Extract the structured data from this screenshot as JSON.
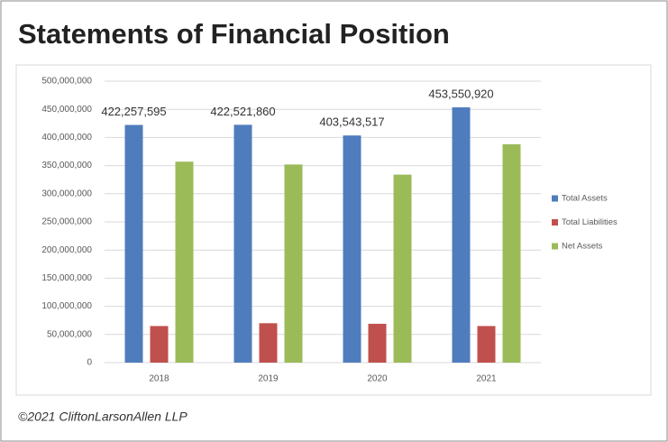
{
  "chart_data": {
    "type": "bar",
    "title": "Statements of Financial Position",
    "categories": [
      "2018",
      "2019",
      "2020",
      "2021"
    ],
    "series": [
      {
        "name": "Total Assets",
        "color": "#4f7cbd",
        "values": [
          422257595,
          422521860,
          403543517,
          453550920
        ],
        "value_labels": [
          "422,257,595",
          "422,521,860",
          "403,543,517",
          "453,550,920"
        ]
      },
      {
        "name": "Total Liabilities",
        "color": "#c0504d",
        "values": [
          65000000,
          70000000,
          69000000,
          65000000
        ]
      },
      {
        "name": "Net Assets",
        "color": "#9bbb59",
        "values": [
          357000000,
          352000000,
          334000000,
          388000000
        ]
      }
    ],
    "ylim": [
      0,
      500000000
    ],
    "yticks": [
      0,
      {
        "value": 50000000,
        "label": "50,000,000"
      },
      {
        "value": 100000000,
        "label": "100,000,000"
      },
      {
        "value": 150000000,
        "label": "150,000,000"
      },
      {
        "value": 200000000,
        "label": "200,000,000"
      },
      {
        "value": 250000000,
        "label": "250,000,000"
      },
      {
        "value": 300000000,
        "label": "300,000,000"
      },
      {
        "value": 350000000,
        "label": "350,000,000"
      },
      {
        "value": 400000000,
        "label": "400,000,000"
      },
      {
        "value": 450000000,
        "label": "450,000,000"
      },
      {
        "value": 500000000,
        "label": "500,000,000"
      }
    ],
    "grid": true,
    "legend": "right"
  },
  "footer": "©2021 CliftonLarsonAllen LLP"
}
